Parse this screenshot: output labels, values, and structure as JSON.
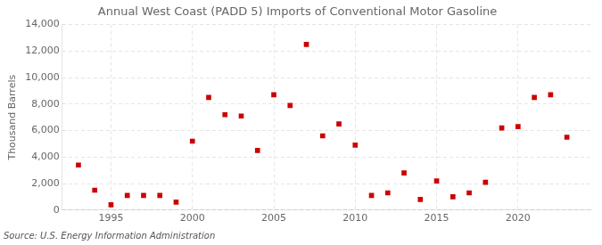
{
  "chart_data": {
    "type": "scatter",
    "title": "Annual West Coast (PADD 5) Imports of Conventional Motor Gasoline",
    "y_label": "Thousand Barrels",
    "source": "Source: U.S. Energy Information Administration",
    "x": [
      1993,
      1994,
      1995,
      1996,
      1997,
      1998,
      1999,
      2000,
      2001,
      2002,
      2003,
      2004,
      2005,
      2006,
      2007,
      2008,
      2009,
      2010,
      2011,
      2012,
      2013,
      2014,
      2015,
      2016,
      2017,
      2018,
      2019,
      2020,
      2021,
      2022,
      2023
    ],
    "values": [
      3400,
      1500,
      400,
      1100,
      1100,
      1100,
      600,
      5200,
      8500,
      7200,
      7100,
      4500,
      8700,
      7900,
      12500,
      5600,
      6500,
      4900,
      1100,
      1300,
      2800,
      800,
      2200,
      1000,
      1300,
      2100,
      6200,
      6300,
      8500,
      8700,
      5500
    ],
    "color": "#cc0000",
    "marker": "square",
    "xlim": [
      1992.0,
      2024.5
    ],
    "xticks": [
      1995,
      2000,
      2005,
      2010,
      2015,
      2020
    ],
    "ylim": [
      0,
      14000
    ],
    "yticks": [
      0,
      {
        "value": 2000,
        "label": "2,000"
      },
      {
        "value": 4000,
        "label": "4,000"
      },
      {
        "value": 6000,
        "label": "6,000"
      },
      {
        "value": 8000,
        "label": "8,000"
      },
      {
        "value": 10000,
        "label": "10,000"
      },
      {
        "value": 12000,
        "label": "12,000"
      },
      {
        "value": 14000,
        "label": "14,000"
      }
    ],
    "grid": true
  }
}
